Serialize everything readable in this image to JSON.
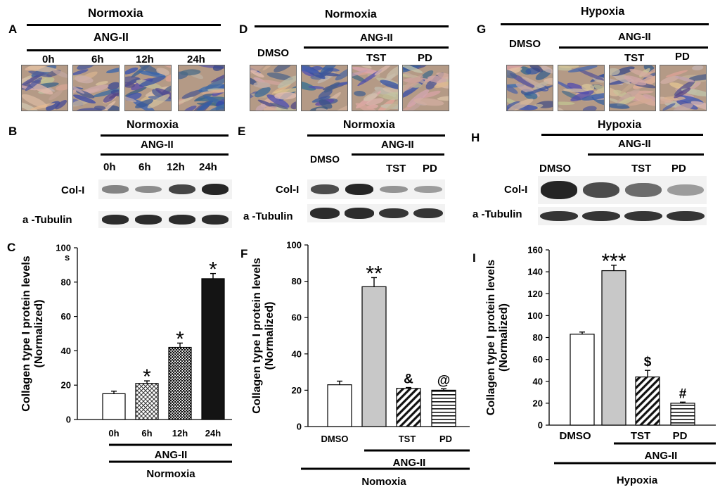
{
  "panels": {
    "A": {
      "letter": "A",
      "condition": "Normoxia",
      "treatment": "ANG-II",
      "lanes": [
        "0h",
        "6h",
        "12h",
        "24h"
      ]
    },
    "B": {
      "letter": "B",
      "condition": "Normoxia",
      "treatment": "ANG-II",
      "lanes": [
        "0h",
        "6h",
        "12h",
        "24h"
      ],
      "row1": "Col-I",
      "row2": "a -Tubulin",
      "col_intensity": [
        0.35,
        0.3,
        0.75,
        0.95
      ]
    },
    "C": {
      "letter": "C"
    },
    "D": {
      "letter": "D",
      "condition": "Normoxia",
      "treatment": "ANG-II",
      "lanes": [
        "DMSO",
        "TST",
        "PD"
      ]
    },
    "E": {
      "letter": "E",
      "condition": "Normoxia",
      "treatment": "ANG-II",
      "lanes": [
        "DMSO",
        "TST",
        "PD"
      ],
      "row1": "Col-I",
      "row2": "a -Tubulin",
      "col_intensity": [
        0.7,
        0.95,
        0.25,
        0.2
      ]
    },
    "F": {
      "letter": "F"
    },
    "G": {
      "letter": "G",
      "condition": "Hypoxia",
      "treatment": "ANG-II",
      "lanes": [
        "DMSO",
        "TST",
        "PD"
      ]
    },
    "H": {
      "letter": "H",
      "condition": "Hypoxia",
      "treatment": "ANG-II",
      "lanes": [
        "DMSO",
        "TST",
        "PD"
      ],
      "row1": "Col-I",
      "row2": "a -Tubulin",
      "col_intensity": [
        0.95,
        0.7,
        0.5,
        0.2
      ]
    },
    "I": {
      "letter": "I"
    }
  },
  "chart_data": [
    {
      "type": "bar",
      "ylabel_line1": "Collagen type I protein levels",
      "ylabel_line2": "(Normalized)",
      "ylabel_suffix": "s",
      "ylim": [
        0,
        100
      ],
      "yticks": [
        0,
        20,
        40,
        60,
        80,
        100
      ],
      "categories": [
        "0h",
        "6h",
        "12h",
        "24h"
      ],
      "values": [
        15,
        21,
        42,
        82
      ],
      "errors": [
        1.5,
        1.5,
        2.5,
        3
      ],
      "sig": [
        "",
        "*",
        "*",
        "*"
      ],
      "bar_styles": [
        "white",
        "crosshatch",
        "dots",
        "black"
      ],
      "group_label": "ANG-II",
      "condition_label": "Normoxia"
    },
    {
      "type": "bar",
      "ylabel_line1": "Collagen type I protein levels",
      "ylabel_line2": "(Normalized)",
      "ylim": [
        0,
        100
      ],
      "yticks": [
        0,
        20,
        40,
        60,
        80,
        100
      ],
      "categories": [
        "DMSO",
        "",
        "TST",
        "PD"
      ],
      "values": [
        23,
        77,
        21,
        20
      ],
      "errors": [
        2,
        5,
        0.5,
        0.8
      ],
      "sig": [
        "",
        "**",
        "&",
        "@"
      ],
      "bar_styles": [
        "white",
        "gray",
        "diag",
        "horiz"
      ],
      "group_label": "ANG-II",
      "condition_label": "Nomoxia"
    },
    {
      "type": "bar",
      "ylabel_line1": "Collagen type I protein levels",
      "ylabel_line2": "(Normalized)",
      "ylim": [
        0,
        160
      ],
      "yticks": [
        0,
        20,
        40,
        60,
        80,
        100,
        120,
        140,
        160
      ],
      "categories": [
        "DMSO",
        "",
        "TST",
        "PD"
      ],
      "values": [
        83,
        141,
        44,
        20
      ],
      "errors": [
        2,
        5,
        6,
        1
      ],
      "sig": [
        "",
        "***",
        "$",
        "#"
      ],
      "bar_styles": [
        "white",
        "gray",
        "diag",
        "horiz"
      ],
      "group_label": "ANG-II",
      "condition_label": "Hypoxia"
    }
  ]
}
